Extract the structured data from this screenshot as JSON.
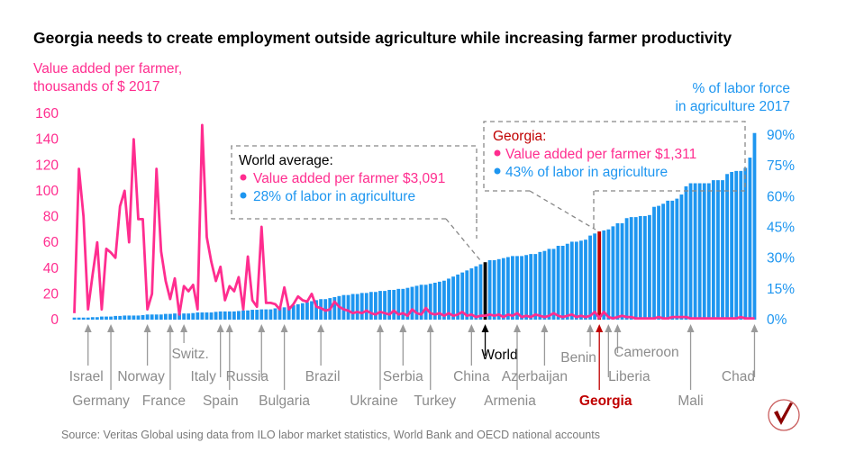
{
  "chart_data": {
    "type": "bar+line",
    "title": "Georgia needs to create employment outside agriculture while increasing farmer productivity",
    "left_axis": {
      "label_lines": [
        "Value added per farmer,",
        "thousands of $ 2017"
      ],
      "ticks": [
        0,
        20,
        40,
        60,
        80,
        100,
        120,
        140,
        160
      ],
      "ylim": [
        0,
        160
      ]
    },
    "right_axis": {
      "label_lines": [
        "% of labor force",
        "in agriculture 2017"
      ],
      "ticks": [
        "0%",
        "15%",
        "30%",
        "45%",
        "60%",
        "75%",
        "90%"
      ],
      "tick_values": [
        0,
        15,
        30,
        45,
        60,
        75,
        90
      ],
      "ylim": [
        0,
        90
      ]
    },
    "series": [
      {
        "kind": "bar",
        "unit": "% of labor force",
        "values": [
          1,
          1,
          1,
          1,
          1.2,
          1.2,
          1.5,
          1.5,
          1.5,
          1.8,
          1.8,
          2,
          2,
          2,
          2,
          2.2,
          2.5,
          2.5,
          2.5,
          2.5,
          2.8,
          2.8,
          3,
          3,
          3,
          3,
          3.2,
          3.5,
          3.5,
          3.5,
          3.5,
          3.8,
          4,
          4,
          4,
          4,
          4.2,
          4.5,
          4.5,
          4.8,
          4.8,
          5,
          5,
          5,
          5.5,
          6,
          6,
          6.5,
          7,
          7.5,
          8,
          8.5,
          9,
          9.5,
          10,
          10,
          10.5,
          11,
          11.5,
          12,
          12,
          12.5,
          12.5,
          13,
          13,
          13.5,
          13.5,
          14,
          14,
          14.5,
          14.5,
          15,
          15,
          15.5,
          16,
          16.5,
          17,
          17,
          17.5,
          18,
          18.5,
          19,
          20,
          21,
          22,
          23,
          24,
          25,
          26,
          27,
          28,
          29,
          29,
          29.5,
          30,
          30.5,
          31,
          31,
          31,
          31.5,
          32,
          32,
          33,
          33.5,
          34.5,
          34.5,
          36,
          36,
          37,
          38,
          38,
          38.5,
          39,
          41,
          42,
          43,
          43.5,
          44,
          45.5,
          47,
          47,
          49.5,
          50,
          50,
          50.5,
          50.5,
          51,
          55,
          55.5,
          56.5,
          58,
          58,
          59,
          61,
          65,
          66.5,
          66.5,
          66.5,
          66.5,
          66.5,
          68,
          68,
          68,
          71,
          72,
          72.5,
          72.5,
          74,
          79,
          91
        ]
      },
      {
        "kind": "line",
        "unit": "thousands of $ 2017",
        "values": [
          5,
          117,
          80,
          8,
          35,
          60,
          8,
          55,
          52,
          48,
          88,
          100,
          60,
          140,
          78,
          78,
          8,
          20,
          117,
          53,
          30,
          16,
          32,
          4,
          26,
          22,
          27,
          8,
          151,
          64,
          45,
          30,
          41,
          15,
          26,
          22,
          33,
          8,
          49,
          15,
          10,
          72,
          13,
          13,
          12,
          8,
          25,
          8,
          12,
          18,
          15,
          14,
          20,
          10,
          9,
          7,
          8,
          14,
          10,
          8,
          7,
          5,
          6,
          5,
          7,
          5,
          4,
          6,
          5,
          4,
          7,
          4,
          5,
          3,
          8,
          5,
          4,
          9,
          5,
          4,
          5,
          3,
          5,
          3,
          4,
          6,
          3,
          4,
          2,
          3,
          3.1,
          4,
          3,
          4,
          2,
          4,
          3,
          5,
          2,
          3,
          2,
          4,
          3,
          2,
          3,
          5,
          3,
          2,
          3,
          4,
          2,
          3,
          2,
          3,
          6,
          1.3,
          6,
          2,
          1,
          2,
          3,
          2,
          2,
          1,
          1,
          1,
          1,
          1,
          2,
          1,
          1,
          2,
          2,
          2,
          2,
          1,
          1,
          1,
          1,
          1,
          1,
          1,
          1,
          1,
          1,
          1,
          2,
          1,
          1,
          1
        ]
      }
    ],
    "highlights": {
      "world_index": 90,
      "georgia_index": 115
    },
    "countries": [
      {
        "name": "Israel",
        "index": 3
      },
      {
        "name": "Germany",
        "index": 8
      },
      {
        "name": "Norway",
        "index": 16
      },
      {
        "name": "France",
        "index": 21
      },
      {
        "name": "Switz.",
        "index": 24
      },
      {
        "name": "Italy",
        "index": 32
      },
      {
        "name": "Spain",
        "index": 34
      },
      {
        "name": "Russia",
        "index": 41
      },
      {
        "name": "Bulgaria",
        "index": 46
      },
      {
        "name": "Brazil",
        "index": 54
      },
      {
        "name": "Ukraine",
        "index": 67
      },
      {
        "name": "Serbia",
        "index": 72
      },
      {
        "name": "Turkey",
        "index": 78
      },
      {
        "name": "China",
        "index": 87
      },
      {
        "name": "World",
        "index": 90
      },
      {
        "name": "Armenia",
        "index": 97
      },
      {
        "name": "Azerbaijan",
        "index": 103
      },
      {
        "name": "Benin",
        "index": 113
      },
      {
        "name": "Georgia",
        "index": 115
      },
      {
        "name": "Liberia",
        "index": 117
      },
      {
        "name": "Cameroon",
        "index": 119
      },
      {
        "name": "Mali",
        "index": 135
      },
      {
        "name": "Chad",
        "index": 149
      }
    ]
  },
  "callouts": {
    "world": {
      "heading": "World average:",
      "line1": "Value added per farmer $3,091",
      "line2": "28% of labor in agriculture"
    },
    "georgia": {
      "heading": "Georgia:",
      "line1": "Value added per farmer $1,311",
      "line2": "43% of labor in agriculture"
    }
  },
  "source": "Source: Veritas Global using data from ILO labor market statistics, World Bank and OECD national accounts",
  "colors": {
    "line": "#ff2d8f",
    "bar": "#1e96f0",
    "world": "#000000",
    "georgia": "#c00000",
    "arrow": "#9a9a9a",
    "label": "#8c8c8c"
  },
  "logo": {
    "icon": "check-mark-circle-logo"
  }
}
